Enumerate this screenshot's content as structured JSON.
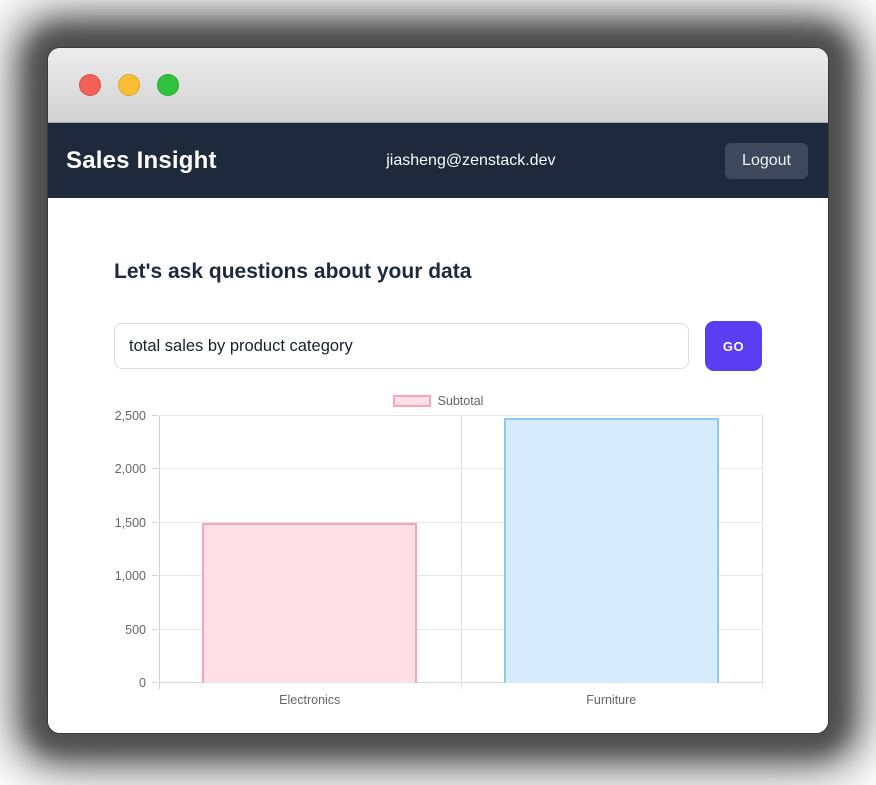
{
  "window": {
    "controls": [
      "close",
      "minimize",
      "zoom"
    ]
  },
  "header": {
    "app_title": "Sales Insight",
    "user_email": "jiasheng@zenstack.dev",
    "logout_label": "Logout"
  },
  "main": {
    "heading": "Let's ask questions about your data",
    "query_input": {
      "value": "total sales by product category"
    },
    "go_label": "GO"
  },
  "chart_data": {
    "type": "bar",
    "title": "",
    "categories": [
      "Electronics",
      "Furniture"
    ],
    "series": [
      {
        "name": "Subtotal",
        "values": [
          1495,
          2480
        ]
      }
    ],
    "legend": [
      {
        "label": "Subtotal",
        "fill": "#ffe0e6",
        "border": "#f9a4b9"
      }
    ],
    "bar_colors": [
      {
        "fill": "#ffe0e6",
        "border": "#f9a4b9"
      },
      {
        "fill": "#d7ecfb",
        "border": "#8ec9ef"
      }
    ],
    "xlabel": "",
    "ylabel": "",
    "ylim": [
      0,
      2500
    ],
    "yticks": [
      0,
      500,
      1000,
      1500,
      2000,
      2500
    ],
    "ytick_labels": [
      "0",
      "500",
      "1,000",
      "1,500",
      "2,000",
      "2,500"
    ],
    "grid": true,
    "legend_position": "top"
  },
  "colors": {
    "accent_purple": "#5b3df4",
    "header_bg": "#1e293b",
    "logout_bg": "#3d495b",
    "traffic_red": "#f55f57",
    "traffic_yellow": "#f9bd35",
    "traffic_green": "#2fc23f"
  }
}
